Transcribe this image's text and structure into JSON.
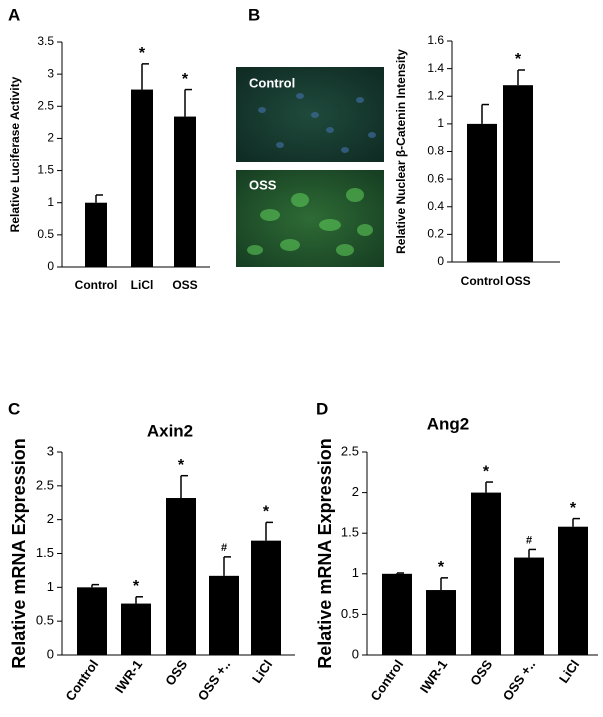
{
  "panel_labels": [
    "A",
    "B",
    "C",
    "D"
  ],
  "images": [
    {
      "label": "Control"
    },
    {
      "label": "OSS"
    }
  ],
  "chart_data": [
    {
      "type": "bar",
      "ylabel": "Relative Luciferase Activity",
      "categories": [
        "Control",
        "LiCl",
        "OSS"
      ],
      "values": [
        1.0,
        2.76,
        2.34
      ],
      "errors": [
        0.12,
        0.4,
        0.42
      ],
      "annotations": [
        null,
        "*",
        "*"
      ],
      "color": "#000000",
      "ylim": [
        0,
        3.5
      ],
      "yticks": [
        0,
        0.5,
        1,
        1.5,
        2,
        2.5,
        3,
        3.5
      ]
    },
    {
      "type": "bar",
      "ylabel": "Relative Nuclear β-Catenin Intensity",
      "categories": [
        "Control",
        "OSS"
      ],
      "values": [
        1.0,
        1.28
      ],
      "errors": [
        0.14,
        0.11
      ],
      "annotations": [
        null,
        "*"
      ],
      "color": "#000000",
      "ylim": [
        0,
        1.6
      ],
      "yticks": [
        0,
        0.2,
        0.4,
        0.6,
        0.8,
        1,
        1.2,
        1.4,
        1.6
      ]
    },
    {
      "type": "bar",
      "title": "Axin2",
      "ylabel": "Relative mRNA Expression",
      "categories": [
        "Control",
        "IWR-1",
        "OSS",
        "OSS +..",
        "LiCl"
      ],
      "values": [
        1.0,
        0.76,
        2.32,
        1.17,
        1.69
      ],
      "errors": [
        0.04,
        0.1,
        0.33,
        0.28,
        0.27
      ],
      "annotations": [
        null,
        "*",
        "*",
        "#",
        "*"
      ],
      "color": "#000000",
      "ylim": [
        0,
        3
      ],
      "yticks": [
        0,
        0.5,
        1,
        1.5,
        2,
        2.5,
        3
      ]
    },
    {
      "type": "bar",
      "title": "Ang2",
      "ylabel": "Relative mRNA Expression",
      "categories": [
        "Control",
        "IWR-1",
        "OSS",
        "OSS +..",
        "LiCl"
      ],
      "values": [
        1.0,
        0.8,
        2.0,
        1.2,
        1.58
      ],
      "errors": [
        0.01,
        0.15,
        0.13,
        0.1,
        0.1
      ],
      "annotations": [
        null,
        "*",
        "*",
        "#",
        "*"
      ],
      "color": "#000000",
      "ylim": [
        0,
        2.5
      ],
      "yticks": [
        0,
        0.5,
        1,
        1.5,
        2,
        2.5
      ]
    }
  ]
}
